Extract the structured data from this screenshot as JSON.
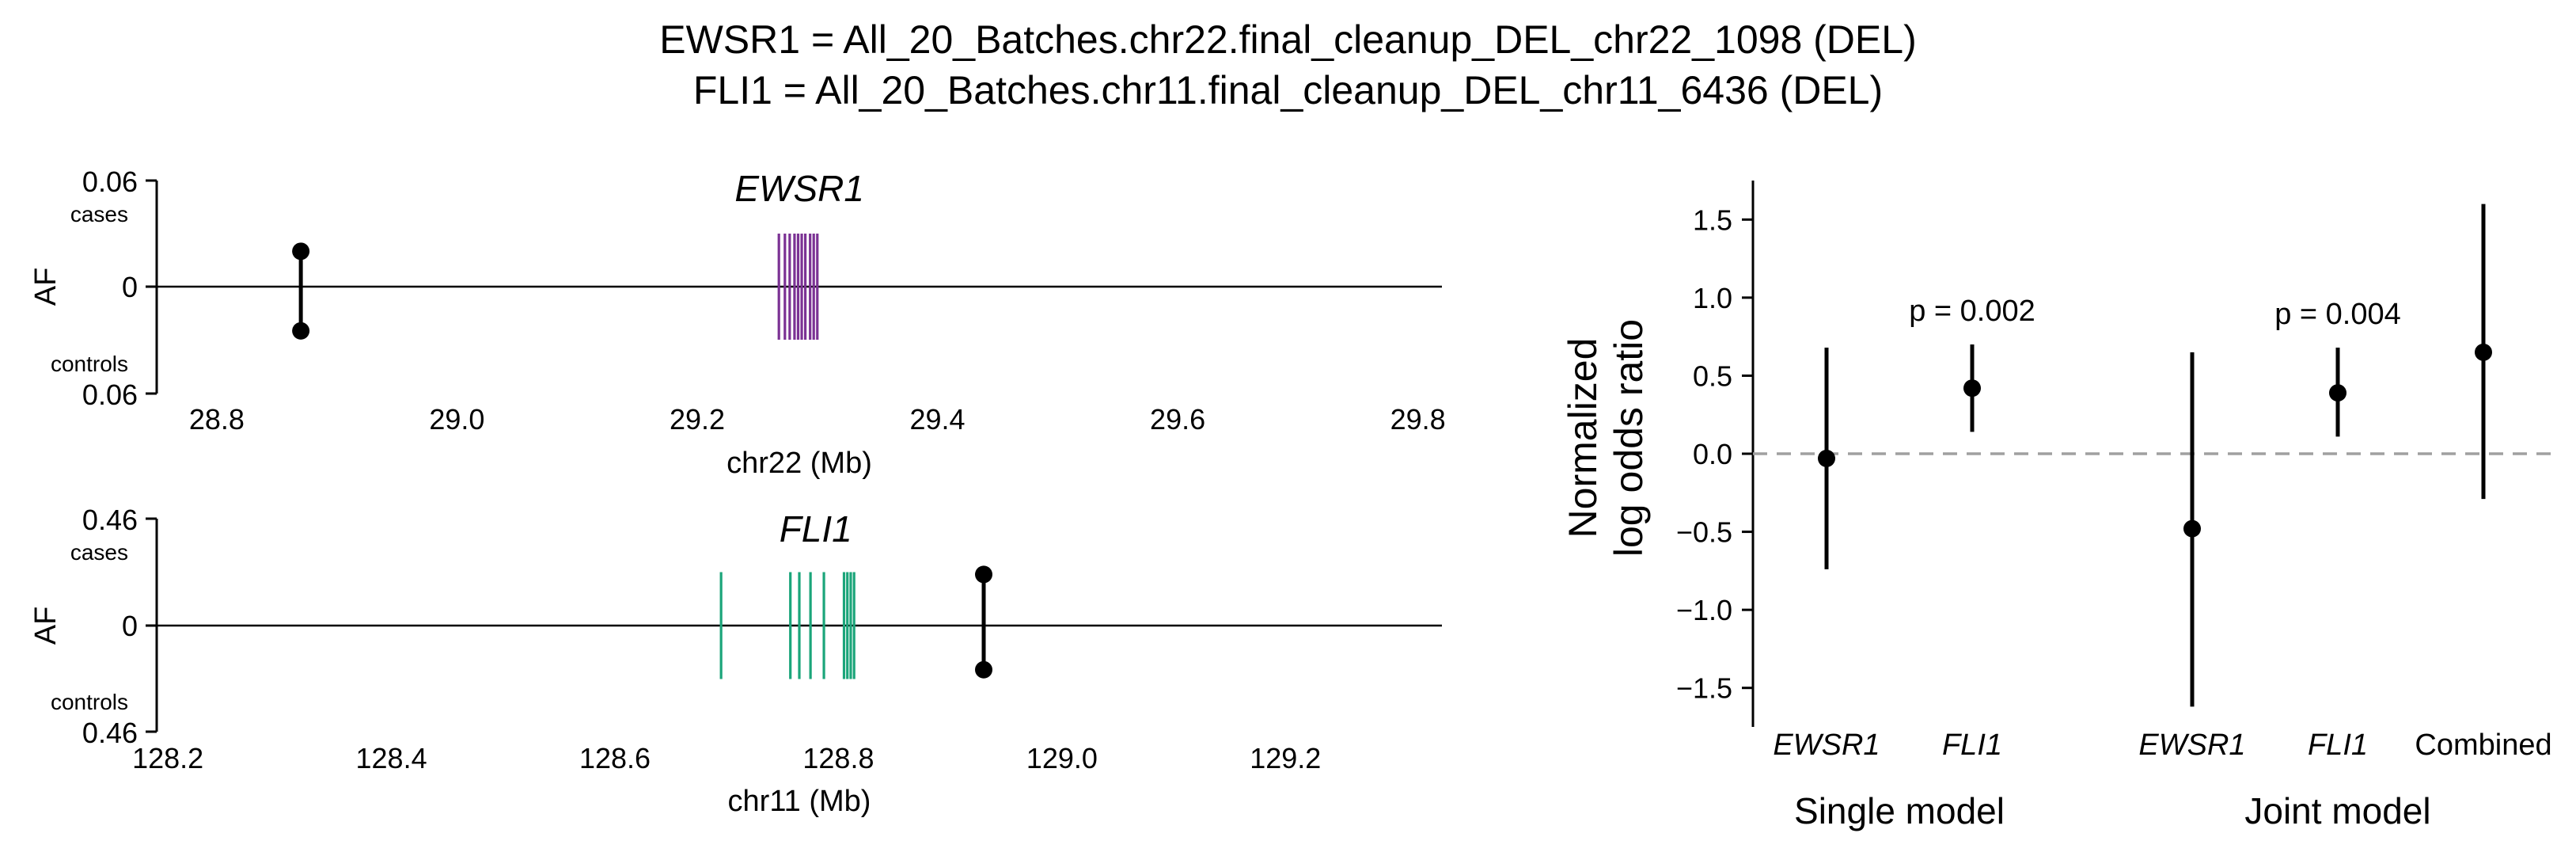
{
  "title": {
    "line1": "EWSR1 = All_20_Batches.chr22.final_cleanup_DEL_chr22_1098 (DEL)",
    "line2": "FLI1 = All_20_Batches.chr11.final_cleanup_DEL_chr11_6436 (DEL)"
  },
  "colors": {
    "ewsr1": "#7B3294",
    "fli1": "#1BA57A",
    "points": "#000000",
    "ref_line": "#A0A0A0"
  },
  "chart_data": [
    {
      "type": "scatter",
      "panel": "EWSR1 locus allele frequency",
      "gene_label": "EWSR1",
      "xlabel": "chr22 (Mb)",
      "ylabel": "AF",
      "xlim": [
        28.75,
        29.82
      ],
      "ylim": [
        -0.06,
        0.06
      ],
      "x_ticks": [
        "28.8",
        "29.0",
        "29.2",
        "29.4",
        "29.6",
        "29.8"
      ],
      "y_top_label": "0.06",
      "y_zero_label": "0",
      "y_bottom_label": "0.06",
      "cases_label": "cases",
      "controls_label": "controls",
      "variant": {
        "x": 28.87,
        "af_cases": 0.02,
        "af_controls": 0.025
      },
      "exons_mb": [
        29.268,
        29.273,
        29.277,
        29.281,
        29.284,
        29.287,
        29.29,
        29.294,
        29.297,
        29.3
      ],
      "exon_half_height_af": 0.03
    },
    {
      "type": "scatter",
      "panel": "FLI1 locus allele frequency",
      "gene_label": "FLI1",
      "xlabel": "chr11 (Mb)",
      "ylabel": "AF",
      "xlim": [
        128.19,
        129.34
      ],
      "ylim": [
        -0.46,
        0.46
      ],
      "x_ticks": [
        "128.2",
        "128.4",
        "128.6",
        "128.8",
        "129.0",
        "129.2"
      ],
      "y_top_label": "0.46",
      "y_zero_label": "0",
      "y_bottom_label": "0.46",
      "cases_label": "cases",
      "controls_label": "controls",
      "variant": {
        "x": 128.93,
        "af_cases": 0.22,
        "af_controls": 0.19
      },
      "exons_mb": [
        128.695,
        128.757,
        128.765,
        128.775,
        128.787,
        128.805,
        128.808,
        128.811,
        128.814
      ],
      "exon_half_height_af": 0.23
    },
    {
      "type": "scatter",
      "panel": "Normalized log odds ratio",
      "ylabel_line1": "Normalized",
      "ylabel_line2": "log odds ratio",
      "ylim": [
        -1.75,
        1.75
      ],
      "y_ticks": [
        "1.5",
        "1.0",
        "0.5",
        "0.0",
        "−0.5",
        "−1.0",
        "−1.5"
      ],
      "reference_y": 0.0,
      "group_labels": [
        "Single model",
        "Joint model"
      ],
      "points": [
        {
          "label": "EWSR1",
          "italic": true,
          "group": "Single model",
          "value": -0.03,
          "ci": [
            -0.74,
            0.68
          ],
          "p_label": ""
        },
        {
          "label": "FLI1",
          "italic": true,
          "group": "Single model",
          "value": 0.42,
          "ci": [
            0.14,
            0.7
          ],
          "p_label": "p = 0.002"
        },
        {
          "label": "EWSR1",
          "italic": true,
          "group": "Joint model",
          "value": -0.48,
          "ci": [
            -1.62,
            0.65
          ],
          "p_label": ""
        },
        {
          "label": "FLI1",
          "italic": true,
          "group": "Joint model",
          "value": 0.39,
          "ci": [
            0.11,
            0.68
          ],
          "p_label": "p = 0.004"
        },
        {
          "label": "Combined",
          "italic": false,
          "group": "Joint model",
          "value": 0.65,
          "ci": [
            -0.29,
            1.6
          ],
          "p_label": ""
        }
      ]
    }
  ]
}
